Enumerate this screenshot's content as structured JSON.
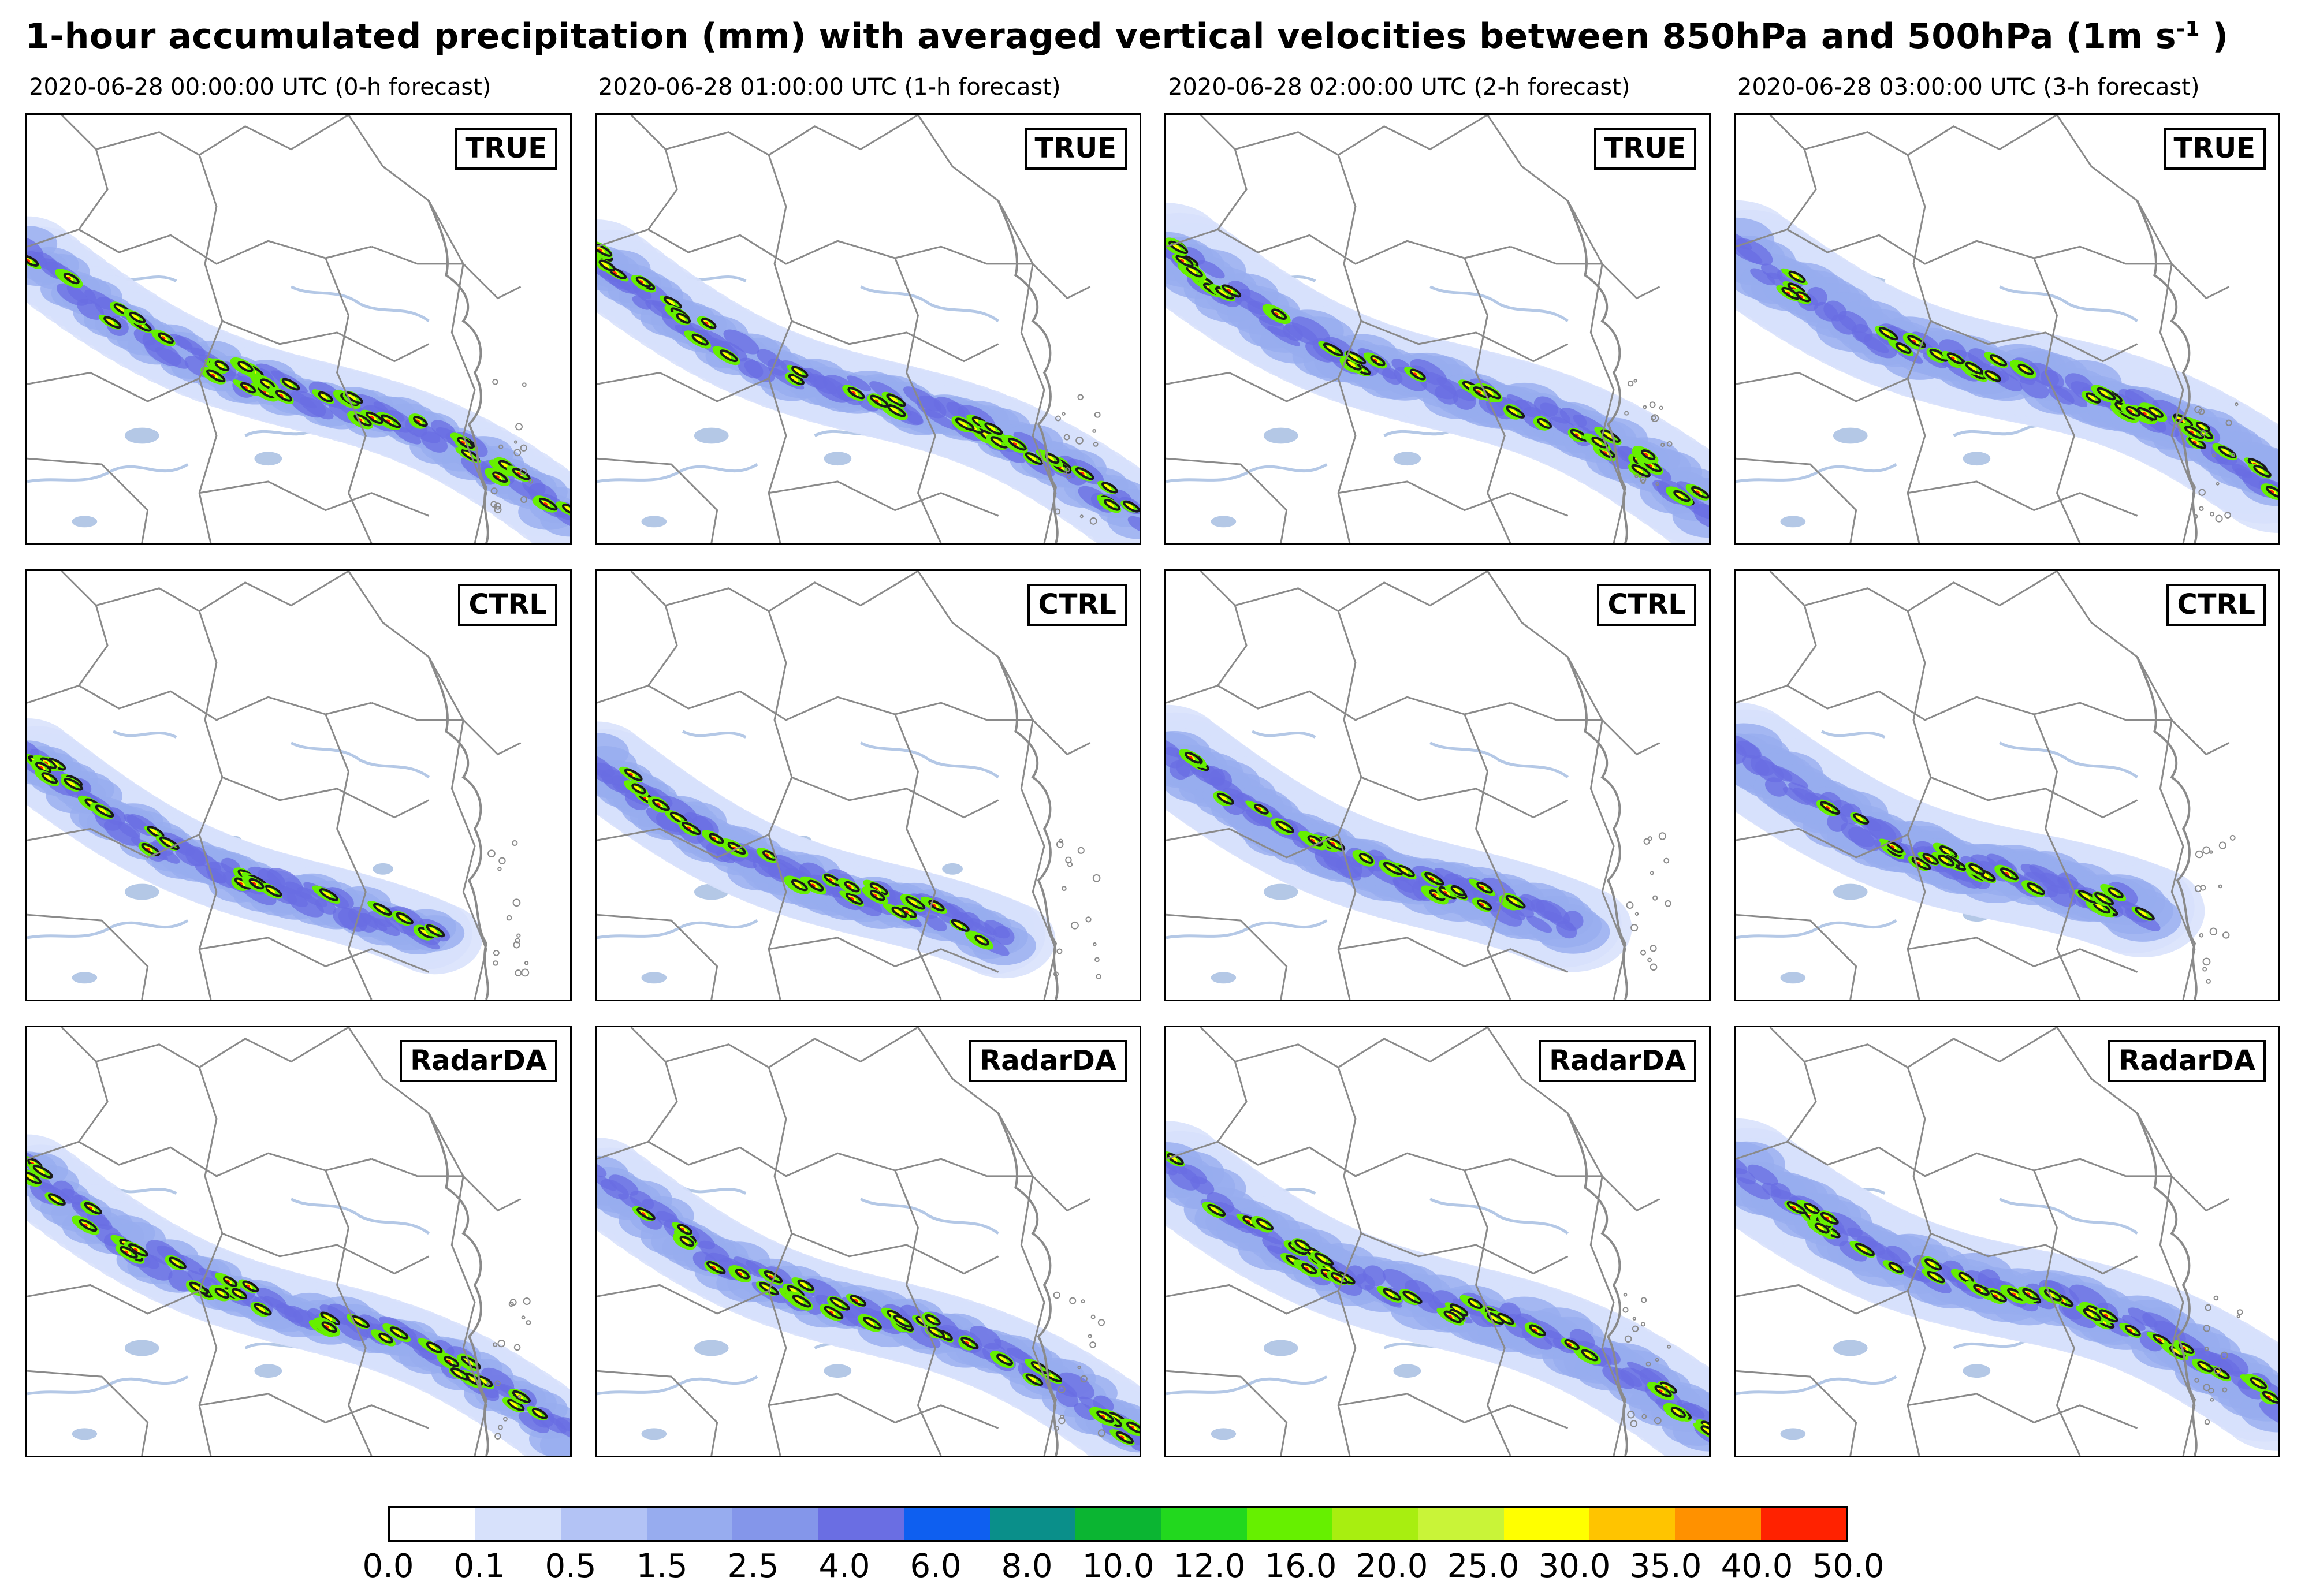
{
  "title": {
    "text": "1-hour accumulated precipitation (mm) with averaged vertical velocities between 850hPa and 500hPa (1m s",
    "superscript": "-1",
    "suffix": ")"
  },
  "columns": [
    {
      "label": "2020-06-28 00:00:00 UTC (0-h forecast)"
    },
    {
      "label": "2020-06-28 01:00:00 UTC (1-h forecast)"
    },
    {
      "label": "2020-06-28 02:00:00 UTC (2-h forecast)"
    },
    {
      "label": "2020-06-28 03:00:00 UTC (3-h forecast)"
    }
  ],
  "rows": [
    {
      "label": "TRUE"
    },
    {
      "label": "CTRL"
    },
    {
      "label": "RadarDA"
    }
  ],
  "colorbar": {
    "ticks": [
      "0.0",
      "0.1",
      "0.5",
      "1.5",
      "2.5",
      "4.0",
      "6.0",
      "8.0",
      "10.0",
      "12.0",
      "16.0",
      "20.0",
      "25.0",
      "30.0",
      "35.0",
      "40.0",
      "50.0"
    ],
    "colors": [
      "#ffffff",
      "#d7e1fb",
      "#b3c3f5",
      "#97acef",
      "#8496ea",
      "#6a6ee3",
      "#0e5ff0",
      "#0a8f8a",
      "#0bb532",
      "#22d81e",
      "#66f000",
      "#a8ee10",
      "#c9f438",
      "#ffff00",
      "#ffc400",
      "#ff9100",
      "#ff2200"
    ]
  },
  "styling": {
    "contour_color": "#1a1a1a",
    "border_color": "#8a8a8a",
    "river_color": "#b4c8e6"
  }
}
